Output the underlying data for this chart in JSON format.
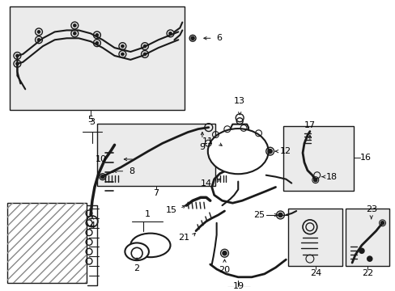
{
  "bg_color": "#ffffff",
  "box_fill": "#ebebeb",
  "line_color": "#1a1a1a",
  "figsize": [
    4.89,
    3.6
  ],
  "dpi": 100,
  "xlim": [
    0,
    489
  ],
  "ylim": [
    0,
    360
  ]
}
